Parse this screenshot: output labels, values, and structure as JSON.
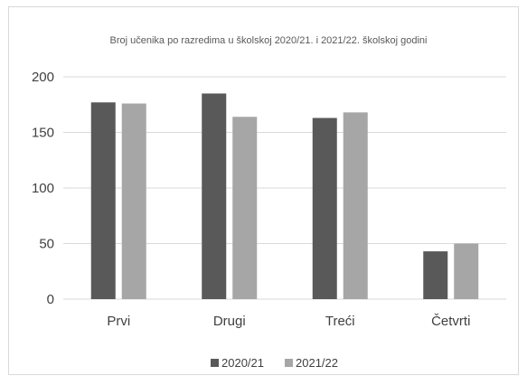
{
  "chart_data": {
    "type": "bar",
    "title": "Broj učenika po razredima u školskoj 2020/21. i 2021/22. školskoj godini",
    "categories": [
      "Prvi",
      "Drugi",
      "Treći",
      "Četvrti"
    ],
    "series": [
      {
        "name": "2020/21",
        "values": [
          177,
          185,
          163,
          43
        ],
        "color": "#595959"
      },
      {
        "name": "2021/22",
        "values": [
          176,
          164,
          168,
          50
        ],
        "color": "#a6a6a6"
      }
    ],
    "yticks": [
      "0",
      "50",
      "100",
      "150",
      "200"
    ],
    "ylim": [
      0,
      200
    ],
    "grid": true,
    "legend_position": "bottom"
  }
}
